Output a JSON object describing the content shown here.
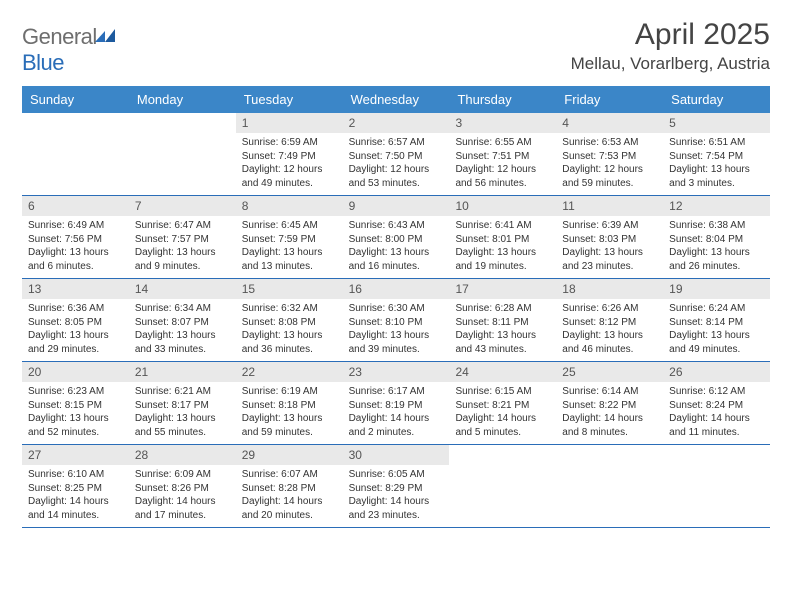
{
  "logo": {
    "part1": "General",
    "part2": "Blue"
  },
  "title": "April 2025",
  "location": "Mellau, Vorarlberg, Austria",
  "colors": {
    "header_bg": "#3b86c8",
    "header_text": "#ffffff",
    "daynum_bg": "#e9e9e9",
    "divider": "#2a6db8",
    "text": "#333333",
    "title_text": "#444444"
  },
  "dow": [
    "Sunday",
    "Monday",
    "Tuesday",
    "Wednesday",
    "Thursday",
    "Friday",
    "Saturday"
  ],
  "weeks": [
    [
      null,
      null,
      {
        "n": "1",
        "sr": "6:59 AM",
        "ss": "7:49 PM",
        "dl": "12 hours and 49 minutes."
      },
      {
        "n": "2",
        "sr": "6:57 AM",
        "ss": "7:50 PM",
        "dl": "12 hours and 53 minutes."
      },
      {
        "n": "3",
        "sr": "6:55 AM",
        "ss": "7:51 PM",
        "dl": "12 hours and 56 minutes."
      },
      {
        "n": "4",
        "sr": "6:53 AM",
        "ss": "7:53 PM",
        "dl": "12 hours and 59 minutes."
      },
      {
        "n": "5",
        "sr": "6:51 AM",
        "ss": "7:54 PM",
        "dl": "13 hours and 3 minutes."
      }
    ],
    [
      {
        "n": "6",
        "sr": "6:49 AM",
        "ss": "7:56 PM",
        "dl": "13 hours and 6 minutes."
      },
      {
        "n": "7",
        "sr": "6:47 AM",
        "ss": "7:57 PM",
        "dl": "13 hours and 9 minutes."
      },
      {
        "n": "8",
        "sr": "6:45 AM",
        "ss": "7:59 PM",
        "dl": "13 hours and 13 minutes."
      },
      {
        "n": "9",
        "sr": "6:43 AM",
        "ss": "8:00 PM",
        "dl": "13 hours and 16 minutes."
      },
      {
        "n": "10",
        "sr": "6:41 AM",
        "ss": "8:01 PM",
        "dl": "13 hours and 19 minutes."
      },
      {
        "n": "11",
        "sr": "6:39 AM",
        "ss": "8:03 PM",
        "dl": "13 hours and 23 minutes."
      },
      {
        "n": "12",
        "sr": "6:38 AM",
        "ss": "8:04 PM",
        "dl": "13 hours and 26 minutes."
      }
    ],
    [
      {
        "n": "13",
        "sr": "6:36 AM",
        "ss": "8:05 PM",
        "dl": "13 hours and 29 minutes."
      },
      {
        "n": "14",
        "sr": "6:34 AM",
        "ss": "8:07 PM",
        "dl": "13 hours and 33 minutes."
      },
      {
        "n": "15",
        "sr": "6:32 AM",
        "ss": "8:08 PM",
        "dl": "13 hours and 36 minutes."
      },
      {
        "n": "16",
        "sr": "6:30 AM",
        "ss": "8:10 PM",
        "dl": "13 hours and 39 minutes."
      },
      {
        "n": "17",
        "sr": "6:28 AM",
        "ss": "8:11 PM",
        "dl": "13 hours and 43 minutes."
      },
      {
        "n": "18",
        "sr": "6:26 AM",
        "ss": "8:12 PM",
        "dl": "13 hours and 46 minutes."
      },
      {
        "n": "19",
        "sr": "6:24 AM",
        "ss": "8:14 PM",
        "dl": "13 hours and 49 minutes."
      }
    ],
    [
      {
        "n": "20",
        "sr": "6:23 AM",
        "ss": "8:15 PM",
        "dl": "13 hours and 52 minutes."
      },
      {
        "n": "21",
        "sr": "6:21 AM",
        "ss": "8:17 PM",
        "dl": "13 hours and 55 minutes."
      },
      {
        "n": "22",
        "sr": "6:19 AM",
        "ss": "8:18 PM",
        "dl": "13 hours and 59 minutes."
      },
      {
        "n": "23",
        "sr": "6:17 AM",
        "ss": "8:19 PM",
        "dl": "14 hours and 2 minutes."
      },
      {
        "n": "24",
        "sr": "6:15 AM",
        "ss": "8:21 PM",
        "dl": "14 hours and 5 minutes."
      },
      {
        "n": "25",
        "sr": "6:14 AM",
        "ss": "8:22 PM",
        "dl": "14 hours and 8 minutes."
      },
      {
        "n": "26",
        "sr": "6:12 AM",
        "ss": "8:24 PM",
        "dl": "14 hours and 11 minutes."
      }
    ],
    [
      {
        "n": "27",
        "sr": "6:10 AM",
        "ss": "8:25 PM",
        "dl": "14 hours and 14 minutes."
      },
      {
        "n": "28",
        "sr": "6:09 AM",
        "ss": "8:26 PM",
        "dl": "14 hours and 17 minutes."
      },
      {
        "n": "29",
        "sr": "6:07 AM",
        "ss": "8:28 PM",
        "dl": "14 hours and 20 minutes."
      },
      {
        "n": "30",
        "sr": "6:05 AM",
        "ss": "8:29 PM",
        "dl": "14 hours and 23 minutes."
      },
      null,
      null,
      null
    ]
  ],
  "labels": {
    "sunrise": "Sunrise:",
    "sunset": "Sunset:",
    "daylight": "Daylight:"
  }
}
